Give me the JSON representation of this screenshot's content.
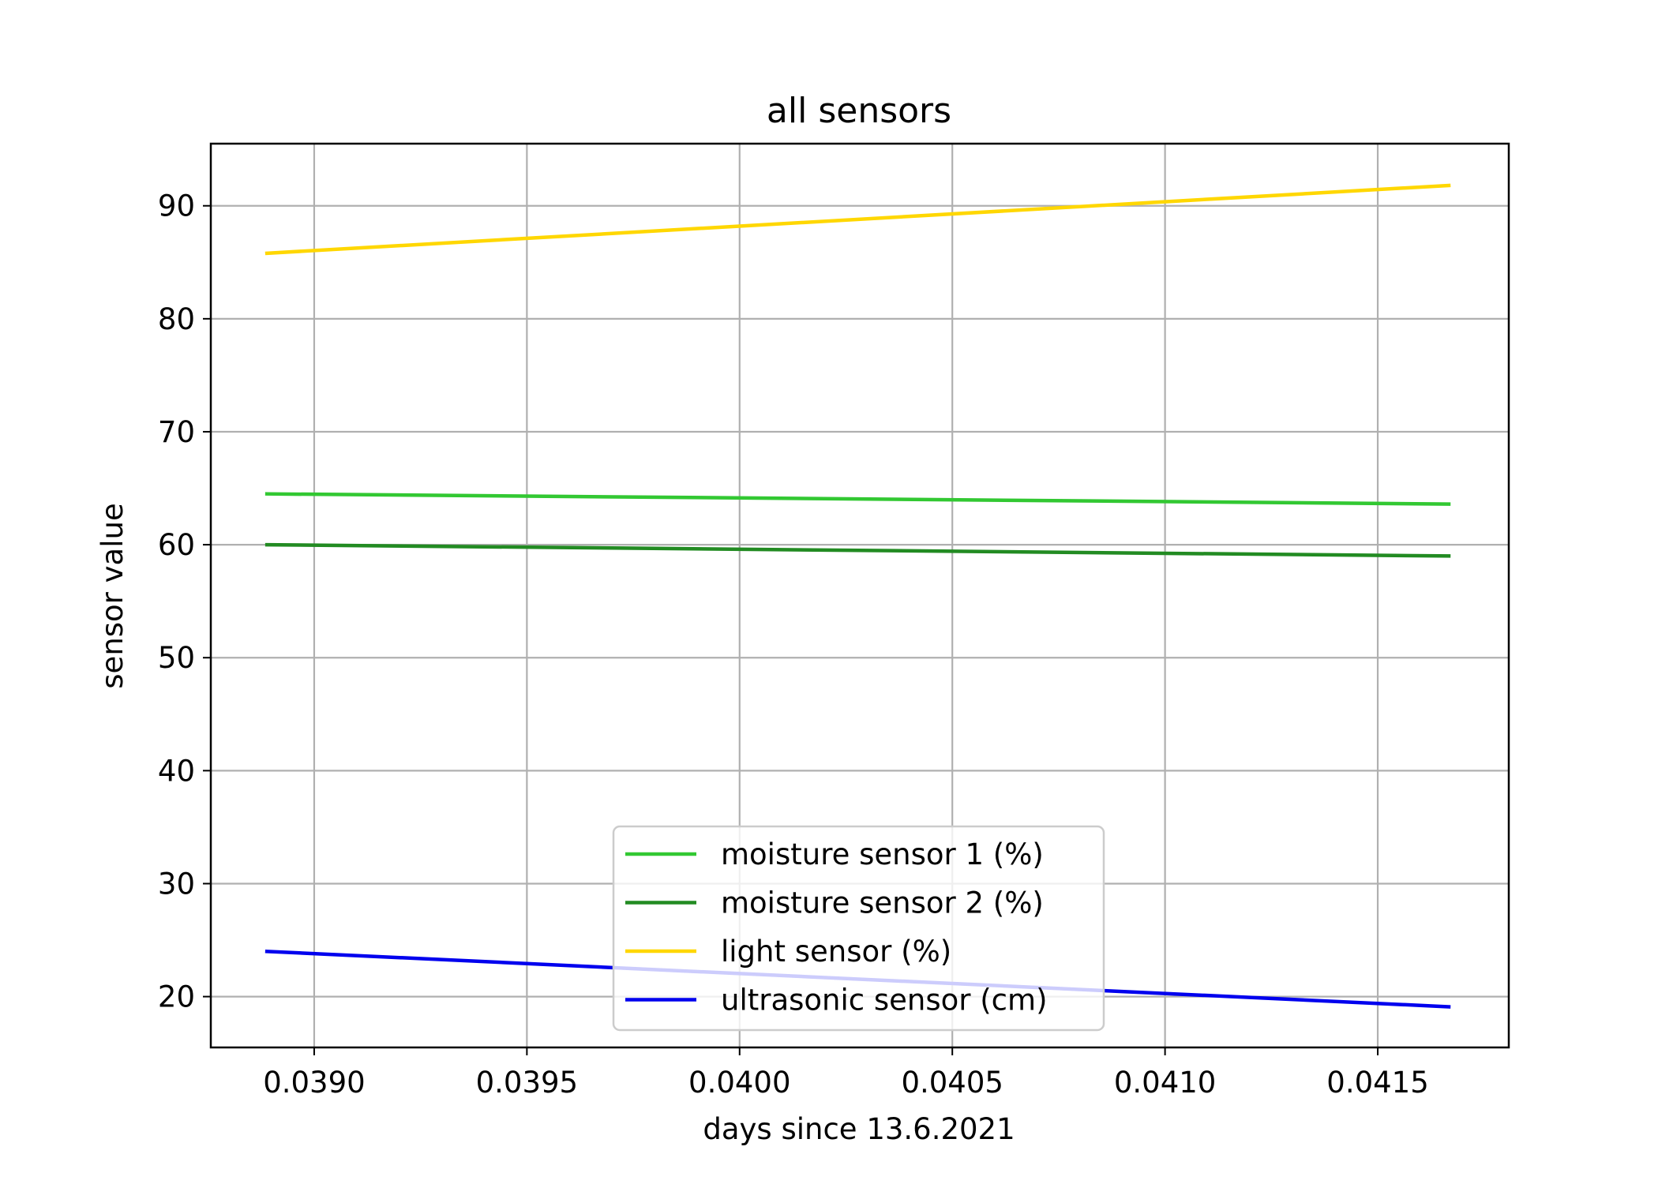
{
  "chart_data": {
    "type": "line",
    "title": "all sensors",
    "xlabel": "days since 13.6.2021",
    "ylabel": "sensor value",
    "xlim": [
      0.038757,
      0.041808
    ],
    "ylim": [
      15.5,
      95.5
    ],
    "xticks": [
      0.039,
      0.0395,
      0.04,
      0.0405,
      0.041,
      0.0415
    ],
    "xtick_labels": [
      "0.0390",
      "0.0395",
      "0.0400",
      "0.0405",
      "0.0410",
      "0.0415"
    ],
    "yticks": [
      20,
      30,
      40,
      50,
      60,
      70,
      80,
      90
    ],
    "ytick_labels": [
      "20",
      "30",
      "40",
      "50",
      "60",
      "70",
      "80",
      "90"
    ],
    "grid": true,
    "legend_position": "lower-center",
    "series": [
      {
        "name": "moisture sensor 1 (%)",
        "color": "#32c832",
        "x": [
          0.038889,
          0.041667
        ],
        "y": [
          64.5,
          63.6
        ]
      },
      {
        "name": "moisture sensor 2 (%)",
        "color": "#228b22",
        "x": [
          0.038889,
          0.041667
        ],
        "y": [
          60.0,
          59.0
        ]
      },
      {
        "name": "light sensor (%)",
        "color": "#ffd700",
        "x": [
          0.038889,
          0.041667
        ],
        "y": [
          85.8,
          91.8
        ]
      },
      {
        "name": "ultrasonic sensor (cm)",
        "color": "#0000ee",
        "x": [
          0.038889,
          0.041667
        ],
        "y": [
          24.0,
          19.1
        ]
      }
    ]
  }
}
